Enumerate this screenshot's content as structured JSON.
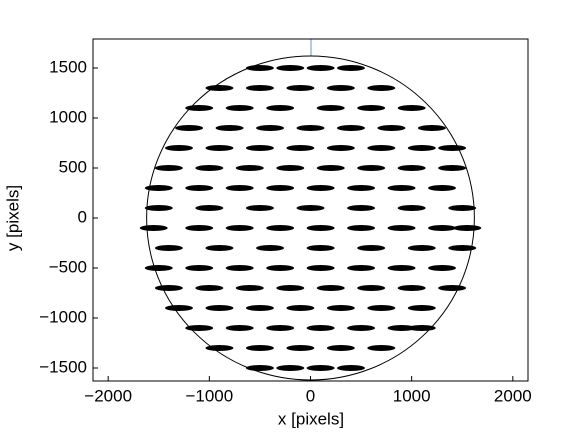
{
  "chart_data": {
    "type": "scatter",
    "x_label": "x [pixels]",
    "y_label": "y [pixels]",
    "xlim": [
      -2150,
      2150
    ],
    "ylim": [
      -1630,
      1790
    ],
    "xticks": [
      {
        "value": -2000,
        "label": "−2000"
      },
      {
        "value": -1000,
        "label": "−1000"
      },
      0,
      1000,
      2000
    ],
    "yticks": [
      {
        "value": -1500,
        "label": "−1500"
      },
      {
        "value": -1000,
        "label": "−1000"
      },
      {
        "value": -500,
        "label": "−500"
      },
      0,
      500,
      1000,
      1500
    ],
    "boundary_radius": 1620,
    "color": "#000000",
    "x": [
      -500,
      -200,
      100,
      400,
      -900,
      -500,
      -100,
      300,
      700,
      -1100,
      -700,
      -300,
      200,
      600,
      1000,
      -1200,
      -800,
      -400,
      0,
      400,
      800,
      1200,
      -1300,
      -900,
      -500,
      -100,
      300,
      700,
      1100,
      1400,
      -1400,
      -1000,
      -600,
      -200,
      200,
      600,
      1000,
      1400,
      -1500,
      -1100,
      -700,
      -300,
      100,
      500,
      900,
      1300,
      -1500,
      -1000,
      -500,
      0,
      500,
      1000,
      1500,
      -1550,
      -1100,
      -700,
      -300,
      100,
      500,
      900,
      1300,
      1550,
      -1400,
      -900,
      -400,
      100,
      600,
      1100,
      1500,
      -1500,
      -1100,
      -700,
      -300,
      100,
      500,
      900,
      1300,
      -1400,
      -1000,
      -600,
      -200,
      200,
      600,
      1000,
      1400,
      -1300,
      -900,
      -500,
      -100,
      300,
      700,
      1100,
      -1100,
      -700,
      -300,
      100,
      500,
      900,
      1100,
      -900,
      -500,
      -100,
      300,
      700,
      -500,
      -200,
      100,
      400
    ],
    "values": [
      1500,
      1500,
      1500,
      1500,
      1300,
      1300,
      1300,
      1300,
      1300,
      1100,
      1100,
      1100,
      1100,
      1100,
      1100,
      900,
      900,
      900,
      900,
      900,
      900,
      900,
      700,
      700,
      700,
      700,
      700,
      700,
      700,
      700,
      500,
      500,
      500,
      500,
      500,
      500,
      500,
      500,
      300,
      300,
      300,
      300,
      300,
      300,
      300,
      300,
      100,
      100,
      100,
      100,
      100,
      100,
      100,
      -100,
      -100,
      -100,
      -100,
      -100,
      -100,
      -100,
      -100,
      -100,
      -300,
      -300,
      -300,
      -300,
      -300,
      -300,
      -300,
      -500,
      -500,
      -500,
      -500,
      -500,
      -500,
      -500,
      -500,
      -700,
      -700,
      -700,
      -700,
      -700,
      -700,
      -700,
      -700,
      -900,
      -900,
      -900,
      -900,
      -900,
      -900,
      -900,
      -1100,
      -1100,
      -1100,
      -1100,
      -1100,
      -1100,
      -1100,
      -1300,
      -1300,
      -1300,
      -1300,
      -1300,
      -1500,
      -1500,
      -1500,
      -1500
    ]
  }
}
